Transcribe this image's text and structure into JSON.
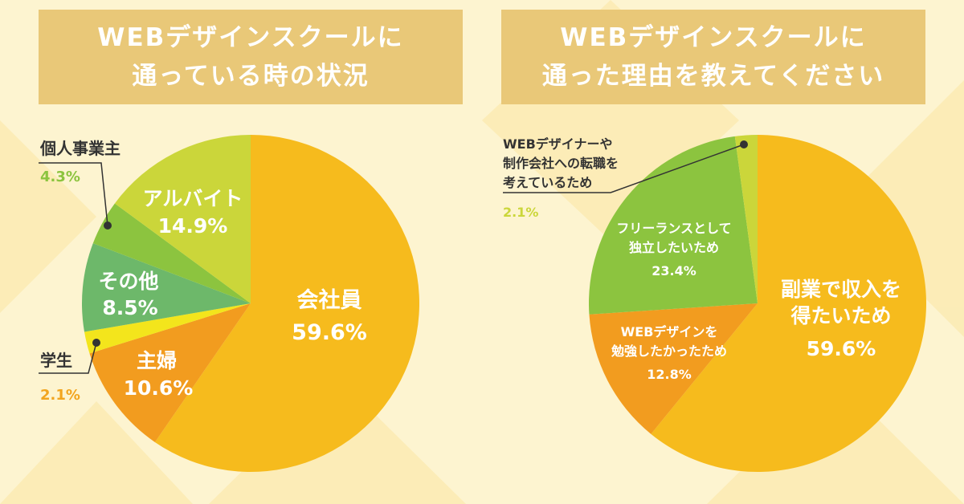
{
  "colors": {
    "background": "#fdf4d0",
    "title_bg": "#e9c878",
    "yellow_orange": "#f6bb1d",
    "orange": "#f29c1f",
    "yellow": "#f3e51c",
    "green_mid": "#6db86a",
    "green": "#8cc43f",
    "lime": "#cbd63a",
    "leader_line": "#333333",
    "pct_green": "#8cc43f",
    "pct_orange": "#f2a51f"
  },
  "chart_data": [
    {
      "type": "pie",
      "title_lines": [
        "WEBデザインスクールに",
        "通っている時の状況"
      ],
      "slices": [
        {
          "label": "会社員",
          "value": 59.6,
          "pct_text": "59.6%",
          "color": "#f6bb1d"
        },
        {
          "label": "主婦",
          "value": 10.6,
          "pct_text": "10.6%",
          "color": "#f29c1f"
        },
        {
          "label": "学生",
          "value": 2.1,
          "pct_text": "2.1%",
          "color": "#f3e51c"
        },
        {
          "label": "その他",
          "value": 8.5,
          "pct_text": "8.5%",
          "color": "#6db86a"
        },
        {
          "label": "個人事業主",
          "value": 4.3,
          "pct_text": "4.3%",
          "color": "#8cc43f"
        },
        {
          "label": "アルバイト",
          "value": 14.9,
          "pct_text": "14.9%",
          "color": "#cbd63a"
        }
      ]
    },
    {
      "type": "pie",
      "title_lines": [
        "WEBデザインスクールに",
        "通った理由を教えてください"
      ],
      "slices": [
        {
          "label_lines": [
            "副業で収入を",
            "得たいため"
          ],
          "value": 59.6,
          "pct_text": "59.6%",
          "color": "#f6bb1d"
        },
        {
          "label_lines": [
            "WEBデザインを",
            "勉強したかったため"
          ],
          "value": 12.8,
          "pct_text": "12.8%",
          "color": "#f29c1f"
        },
        {
          "label_lines": [
            "フリーランスとして",
            "独立したいため"
          ],
          "value": 23.4,
          "pct_text": "23.4%",
          "color": "#8cc43f"
        },
        {
          "label_lines": [
            "WEBデザイナーや",
            "制作会社への転職を",
            "考えているため"
          ],
          "value": 2.1,
          "pct_text": "2.1%",
          "color": "#cbd63a"
        }
      ]
    }
  ]
}
